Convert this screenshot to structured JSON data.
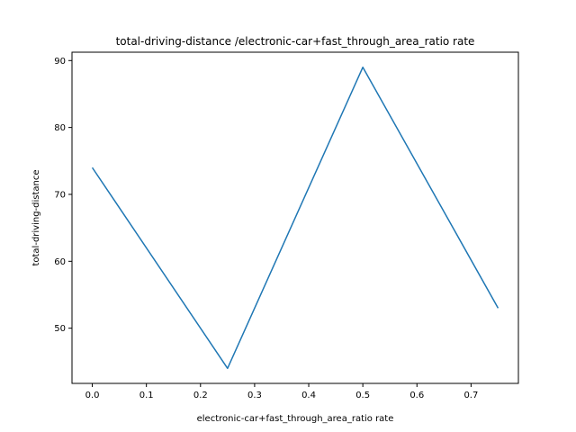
{
  "chart_data": {
    "type": "line",
    "title": "total-driving-distance /electronic-car+fast_through_area_ratio rate",
    "xlabel": "electronic-car+fast_through_area_ratio rate",
    "ylabel": "total-driving-distance",
    "x": [
      0.0,
      0.25,
      0.5,
      0.75
    ],
    "series": [
      {
        "values": [
          74,
          44,
          89,
          53
        ],
        "color": "#1f77b4"
      }
    ],
    "xlim": [
      -0.0375,
      0.7875
    ],
    "ylim": [
      41.75,
      91.25
    ],
    "xticks": [
      0.0,
      0.1,
      0.2,
      0.3,
      0.4,
      0.5,
      0.6,
      0.7
    ],
    "xtick_labels": [
      "0.0",
      "0.1",
      "0.2",
      "0.3",
      "0.4",
      "0.5",
      "0.6",
      "0.7"
    ],
    "yticks": [
      50,
      60,
      70,
      80,
      90
    ],
    "ytick_labels": [
      "50",
      "60",
      "70",
      "80",
      "90"
    ],
    "grid": false,
    "legend": "none"
  }
}
